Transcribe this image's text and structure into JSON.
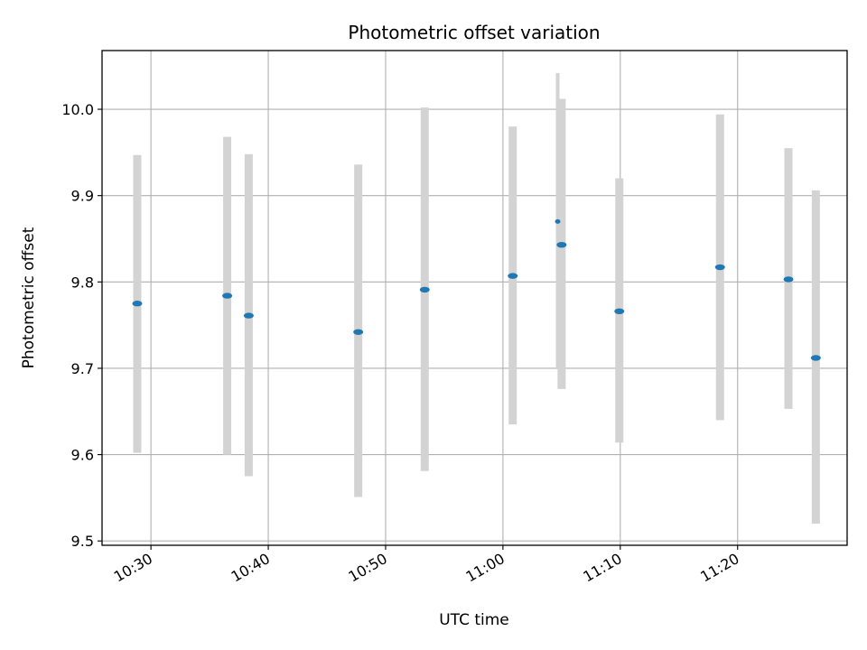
{
  "chart_data": {
    "type": "scatter",
    "title": "Photometric offset variation",
    "xlabel": "UTC time",
    "ylabel": "Photometric offset",
    "x_ticks": [
      "10:30",
      "10:40",
      "10:50",
      "11:00",
      "11:10",
      "11:20"
    ],
    "y_ticks": [
      "9.5",
      "9.6",
      "9.7",
      "9.8",
      "9.9",
      "10.0"
    ],
    "xlim": [
      "10:25:50",
      "11:29:20"
    ],
    "ylim": [
      9.495,
      10.068
    ],
    "grid": true,
    "series": [
      {
        "marker_color": "#1f77b4",
        "errorbar_color": "#d3d3d3",
        "points": [
          {
            "x": "10:28:50",
            "y": 9.775,
            "ylow": 9.602,
            "yhigh": 9.947
          },
          {
            "x": "10:36:30",
            "y": 9.784,
            "ylow": 9.6,
            "yhigh": 9.968
          },
          {
            "x": "10:38:20",
            "y": 9.761,
            "ylow": 9.575,
            "yhigh": 9.948
          },
          {
            "x": "10:47:40",
            "y": 9.742,
            "ylow": 9.551,
            "yhigh": 9.936
          },
          {
            "x": "10:53:20",
            "y": 9.791,
            "ylow": 9.581,
            "yhigh": 10.002
          },
          {
            "x": "11:00:50",
            "y": 9.807,
            "ylow": 9.635,
            "yhigh": 9.98
          },
          {
            "x": "11:04:40",
            "y": 9.87,
            "ylow": 9.701,
            "yhigh": 10.042
          },
          {
            "x": "11:05:00",
            "y": 9.843,
            "ylow": 9.676,
            "yhigh": 10.012
          },
          {
            "x": "11:09:55",
            "y": 9.766,
            "ylow": 9.614,
            "yhigh": 9.92
          },
          {
            "x": "11:18:30",
            "y": 9.817,
            "ylow": 9.64,
            "yhigh": 9.994
          },
          {
            "x": "11:24:20",
            "y": 9.803,
            "ylow": 9.653,
            "yhigh": 9.955
          },
          {
            "x": "11:26:40",
            "y": 9.712,
            "ylow": 9.52,
            "yhigh": 9.906
          }
        ]
      }
    ]
  }
}
